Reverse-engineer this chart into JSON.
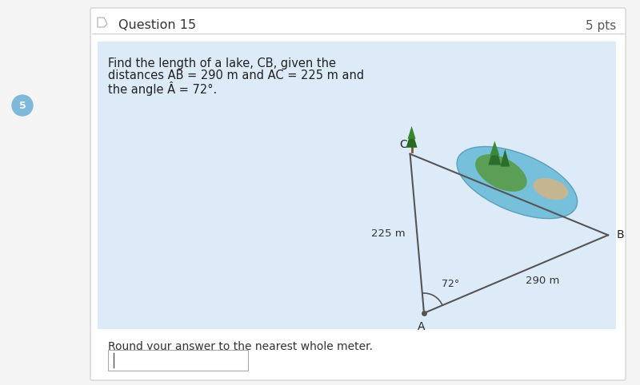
{
  "title": "Question 15",
  "pts_label": "5 pts",
  "q_line1": "Find the length of a lake, CB, given the",
  "q_line2": "distances AB = 290 m and AC = 225 m and",
  "q_line3": "the angle Â = 72°.",
  "sub_label": "Round your answer to the nearest whole meter.",
  "bg_color": "#ddeaf7",
  "outer_bg": "#f4f4f4",
  "card_bg": "#ffffff",
  "label_A": "A",
  "label_B": "B",
  "label_C": "C",
  "label_AC": "225 m",
  "label_AB": "290 m",
  "angle_label": "72°",
  "circle5_color": "#7fb8db",
  "header_line_color": "#d0d0d0",
  "triangle_color": "#555555",
  "text_color": "#333333"
}
